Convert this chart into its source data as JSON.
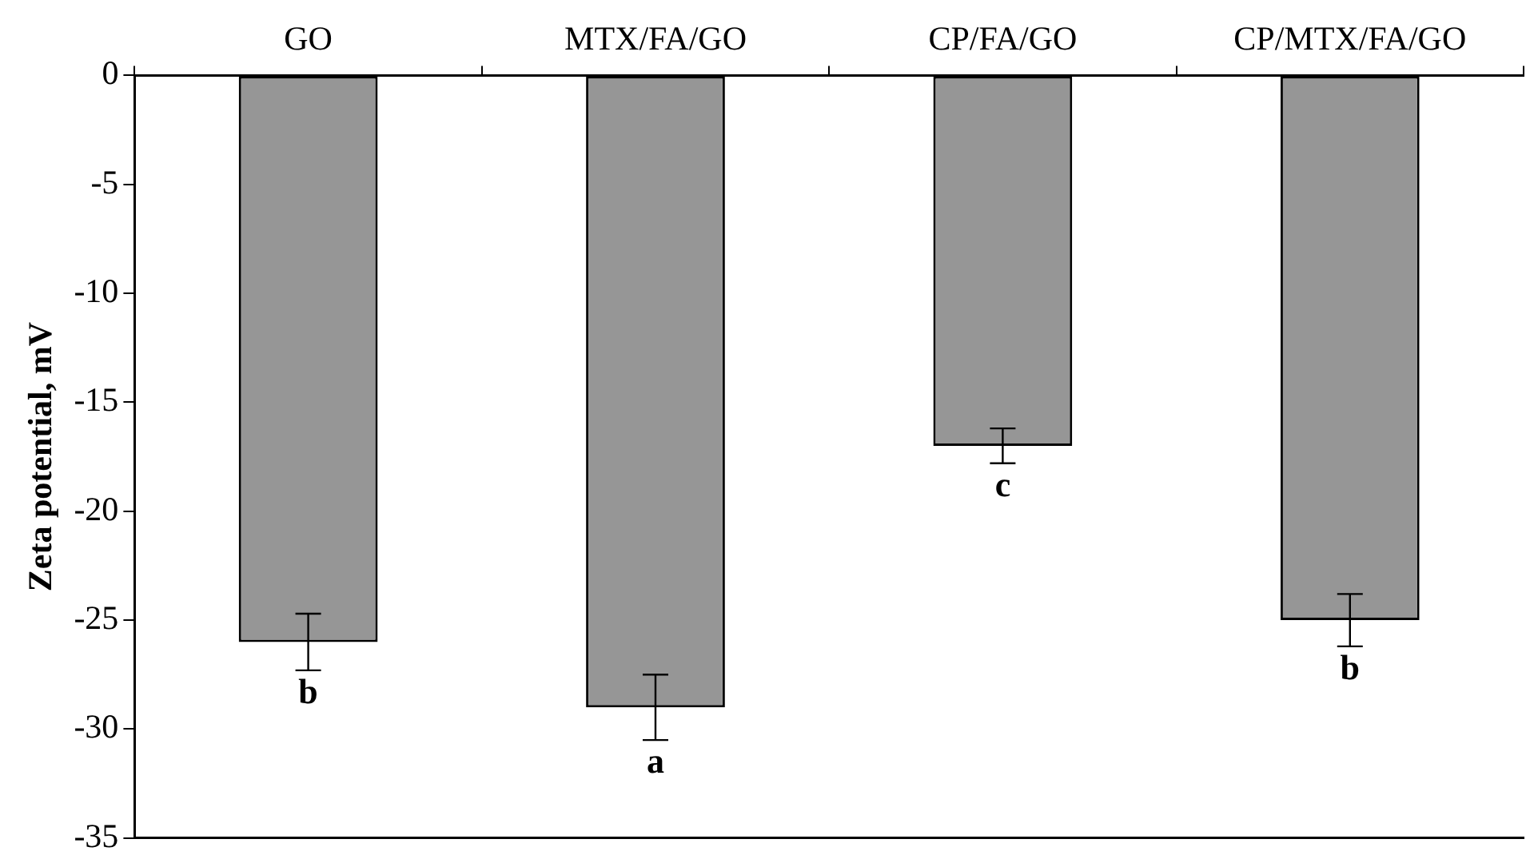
{
  "chart_data": {
    "type": "bar",
    "categories": [
      "GO",
      "MTX/FA/GO",
      "CP/FA/GO",
      "CP/MTX/FA/GO"
    ],
    "values": [
      -26,
      -29,
      -17,
      -25
    ],
    "errors": [
      1.3,
      1.5,
      0.8,
      1.2
    ],
    "color": "#969696",
    "ylabel": "Zeta potential, mV",
    "ylim": [
      -35,
      0
    ],
    "yticks": [
      -35,
      -30,
      -25,
      -20,
      -15,
      -10,
      -5,
      0
    ],
    "grid": false,
    "legend": false,
    "annotations": [
      {
        "text": "b",
        "x": "GO",
        "y": -26
      },
      {
        "text": "a",
        "x": "MTX/FA/GO",
        "y": -29
      },
      {
        "text": "c",
        "x": "CP/FA/GO",
        "y": -17
      },
      {
        "text": "b",
        "x": "CP/MTX/FA/GO",
        "y": -25
      }
    ]
  }
}
